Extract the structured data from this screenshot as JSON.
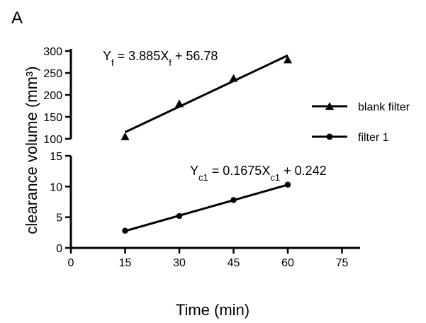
{
  "panel_label": "A",
  "chart_data": {
    "type": "scatter",
    "xlabel": "Time (min)",
    "ylabel": "clearance volume (mm³)",
    "xlim": [
      0,
      80
    ],
    "x_ticks": [
      "0",
      "15",
      "30",
      "45",
      "60",
      "75"
    ],
    "x_tick_values": [
      0,
      15,
      30,
      45,
      60,
      75
    ],
    "broken_y_axis": true,
    "upper_ylim": [
      100,
      300
    ],
    "upper_y_ticks": [
      "100",
      "150",
      "200",
      "250",
      "300"
    ],
    "upper_y_tick_values": [
      100,
      150,
      200,
      250,
      300
    ],
    "lower_ylim": [
      0,
      15
    ],
    "lower_y_ticks": [
      "0",
      "5",
      "10",
      "15"
    ],
    "lower_y_tick_values": [
      0,
      5,
      10,
      15
    ],
    "legend_position": "right",
    "series": [
      {
        "name": "blank filter",
        "marker": "triangle",
        "panel": "upper",
        "x": [
          15,
          30,
          45,
          60
        ],
        "y": [
          105,
          180,
          238,
          280
        ],
        "fit": {
          "slope": 3.885,
          "intercept": 56.78,
          "x_range": [
            15,
            60
          ]
        },
        "equation": {
          "y": "Y",
          "y_sub": "f",
          "mid": " = 3.885X",
          "x_sub": "f",
          "rest": " + 56.78"
        }
      },
      {
        "name": "filter 1",
        "marker": "circle",
        "panel": "lower",
        "x": [
          15,
          30,
          45,
          60
        ],
        "y": [
          2.8,
          5.2,
          7.8,
          10.3
        ],
        "fit": {
          "slope": 0.1675,
          "intercept": 0.242,
          "x_range": [
            15,
            60
          ]
        },
        "equation": {
          "y": "Y",
          "y_sub": "c1",
          "mid": " = 0.1675X",
          "x_sub": "c1",
          "rest": " + 0.242"
        }
      }
    ]
  }
}
